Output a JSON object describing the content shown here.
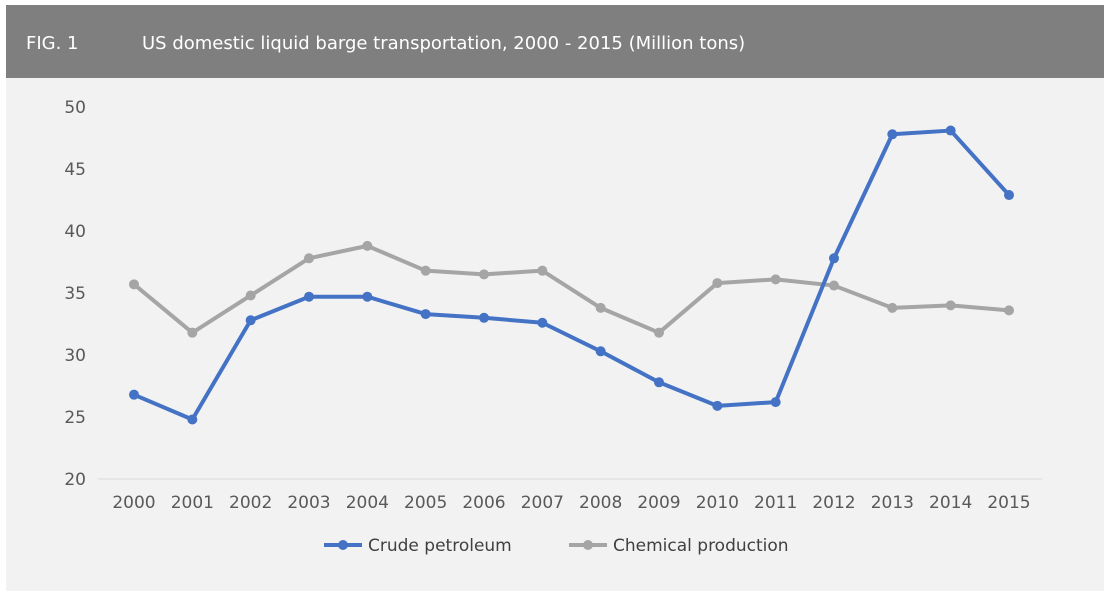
{
  "header": {
    "fig_label": "FIG. 1",
    "title": "US domestic liquid barge transportation, 2000 - 2015 (Million tons)"
  },
  "colors": {
    "header_bg": "#7f7f7f",
    "panel_bg": "#f2f2f2",
    "crude": "#4472c4",
    "chemical": "#a5a5a5"
  },
  "chart_data": {
    "type": "line",
    "title": "US domestic liquid barge transportation, 2000 - 2015 (Million tons)",
    "xlabel": "",
    "ylabel": "",
    "ylim": [
      20,
      50
    ],
    "yticks": [
      20,
      25,
      30,
      35,
      40,
      45,
      50
    ],
    "grid": false,
    "legend": "bottom",
    "categories": [
      "2000",
      "2001",
      "2002",
      "2003",
      "2004",
      "2005",
      "2006",
      "2007",
      "2008",
      "2009",
      "2010",
      "2011",
      "2012",
      "2013",
      "2014",
      "2015"
    ],
    "series": [
      {
        "name": "Crude petroleum",
        "color": "#4472c4",
        "values": [
          26.8,
          24.8,
          32.8,
          34.7,
          34.7,
          33.3,
          33.0,
          32.6,
          30.3,
          27.8,
          25.9,
          26.2,
          37.8,
          47.8,
          48.1,
          42.9
        ]
      },
      {
        "name": "Chemical production",
        "color": "#a5a5a5",
        "values": [
          35.7,
          31.8,
          34.8,
          37.8,
          38.8,
          36.8,
          36.5,
          36.8,
          33.8,
          31.8,
          35.8,
          36.1,
          35.6,
          33.8,
          34.0,
          33.6
        ]
      }
    ]
  }
}
